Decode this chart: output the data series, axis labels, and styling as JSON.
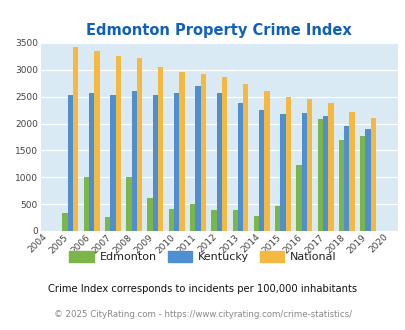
{
  "title": "Edmonton Property Crime Index",
  "years": [
    2004,
    2005,
    2006,
    2007,
    2008,
    2009,
    2010,
    2011,
    2012,
    2013,
    2014,
    2015,
    2016,
    2017,
    2018,
    2019,
    2020
  ],
  "edmonton": [
    0,
    330,
    1000,
    260,
    1000,
    610,
    410,
    510,
    390,
    390,
    270,
    470,
    1220,
    2090,
    1700,
    1760,
    0
  ],
  "kentucky": [
    0,
    2530,
    2560,
    2530,
    2600,
    2530,
    2560,
    2700,
    2560,
    2380,
    2260,
    2180,
    2190,
    2140,
    1960,
    1890,
    0
  ],
  "national": [
    0,
    3420,
    3340,
    3260,
    3210,
    3050,
    2960,
    2920,
    2860,
    2730,
    2600,
    2500,
    2460,
    2380,
    2210,
    2110,
    0
  ],
  "edmonton_color": "#7ab648",
  "kentucky_color": "#4d8fd1",
  "national_color": "#f5b942",
  "bg_color": "#daeaf5",
  "title_color": "#1060c0",
  "ylim": [
    0,
    3500
  ],
  "yticks": [
    0,
    500,
    1000,
    1500,
    2000,
    2500,
    3000,
    3500
  ],
  "bar_width": 0.25,
  "legend_labels": [
    "Edmonton",
    "Kentucky",
    "National"
  ],
  "footnote1": "Crime Index corresponds to incidents per 100,000 inhabitants",
  "footnote2": "© 2025 CityRating.com - https://www.cityrating.com/crime-statistics/",
  "footnote1_color": "#111111",
  "footnote2_color": "#888888",
  "xlim": [
    2003.6,
    2020.4
  ]
}
